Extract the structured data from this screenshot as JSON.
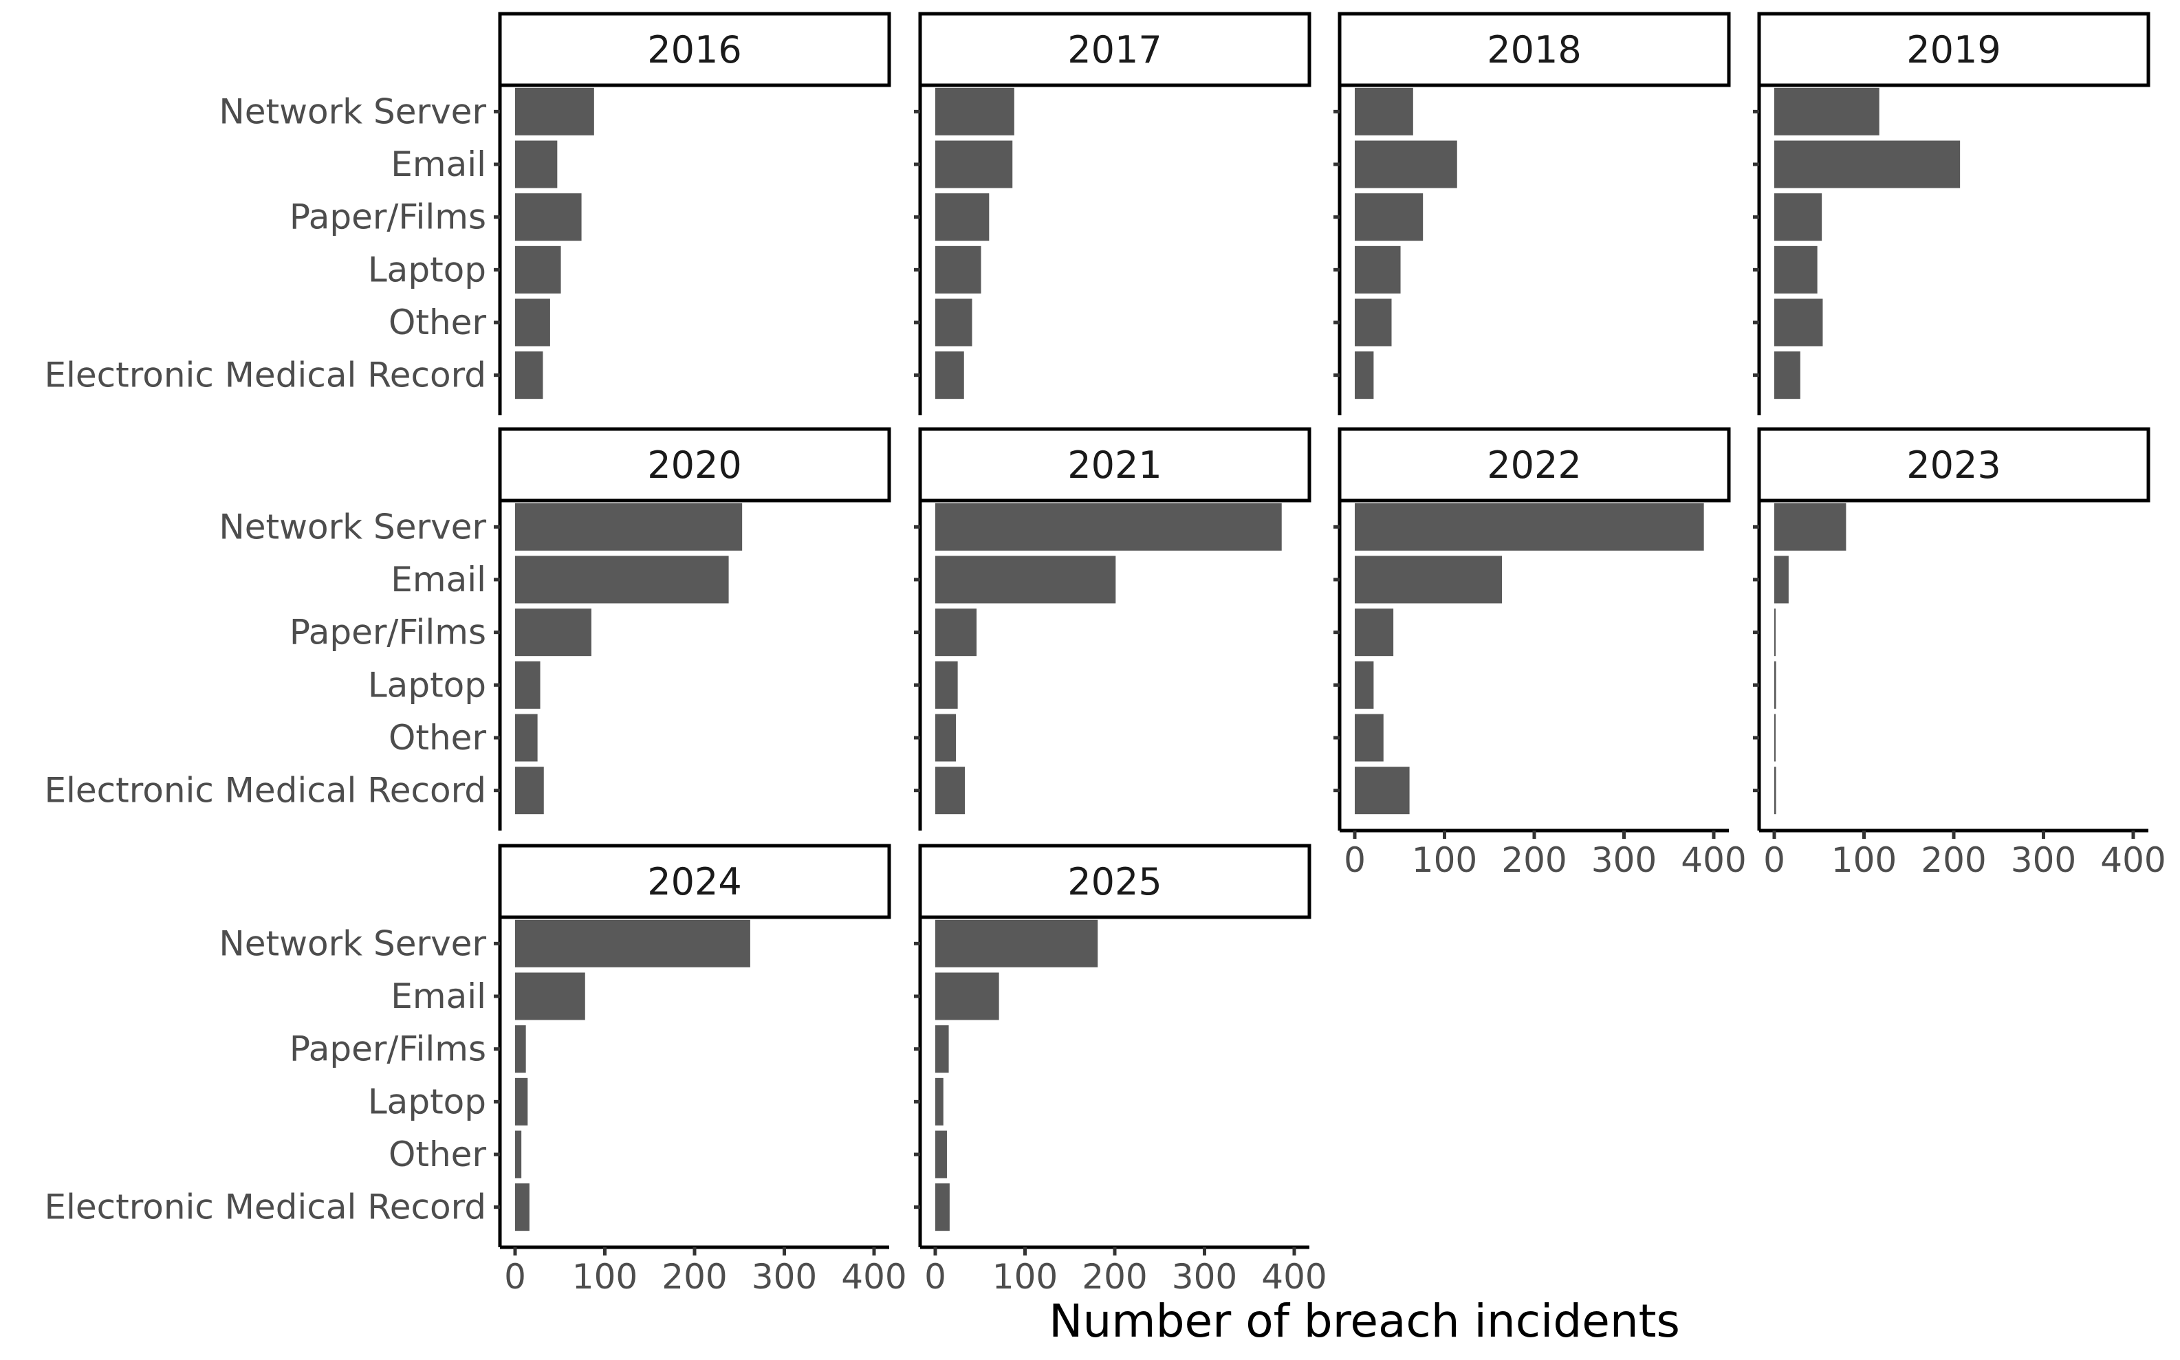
{
  "chart_data": {
    "type": "bar",
    "orientation": "horizontal",
    "layout": "facet_wrap",
    "facet_columns": 4,
    "xlabel": "Number of breach incidents",
    "ylabel": "",
    "xlim": [
      0,
      400
    ],
    "x_ticks": [
      "0",
      "100",
      "200",
      "300",
      "400"
    ],
    "grid": false,
    "bar_color": "#595959",
    "categories": [
      "Network Server",
      "Email",
      "Paper/Films",
      "Laptop",
      "Other",
      "Electronic Medical Record"
    ],
    "panels": [
      {
        "label": "2016",
        "values": [
          88,
          47,
          74,
          51,
          39,
          31
        ]
      },
      {
        "label": "2017",
        "values": [
          88,
          86,
          60,
          51,
          41,
          32
        ]
      },
      {
        "label": "2018",
        "values": [
          65,
          114,
          76,
          51,
          41,
          21
        ]
      },
      {
        "label": "2019",
        "values": [
          117,
          207,
          53,
          48,
          54,
          29
        ]
      },
      {
        "label": "2020",
        "values": [
          253,
          238,
          85,
          28,
          25,
          32
        ]
      },
      {
        "label": "2021",
        "values": [
          386,
          201,
          46,
          25,
          23,
          33
        ]
      },
      {
        "label": "2022",
        "values": [
          389,
          164,
          43,
          21,
          32,
          61
        ]
      },
      {
        "label": "2023",
        "values": [
          80,
          16,
          1,
          2,
          1,
          2
        ]
      },
      {
        "label": "2024",
        "values": [
          262,
          78,
          12,
          14,
          7,
          16
        ]
      },
      {
        "label": "2025",
        "values": [
          181,
          71,
          15,
          9,
          13,
          16
        ]
      }
    ]
  }
}
